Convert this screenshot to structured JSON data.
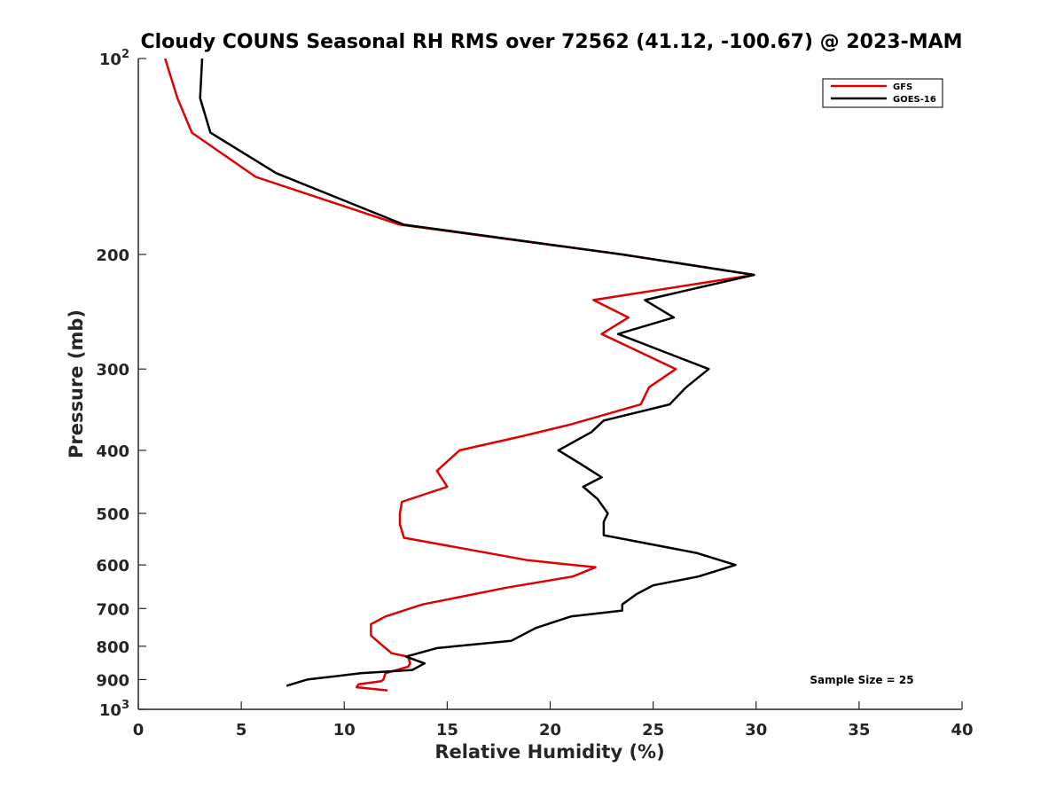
{
  "chart_data": {
    "type": "line",
    "title": "Cloudy COUNS Seasonal RH RMS over 72562 (41.12, -100.67) @ 2023-MAM",
    "xlabel": "Relative Humidity (%)",
    "ylabel": "Pressure (mb)",
    "xlim": [
      0,
      40
    ],
    "ylim": [
      100,
      1000
    ],
    "yscale": "log",
    "y_reversed": true,
    "xticks": [
      "0",
      "5",
      "10",
      "15",
      "20",
      "25",
      "30",
      "35",
      "40"
    ],
    "yticks": [
      {
        "value": 100,
        "base": "10",
        "exp": "2"
      },
      {
        "value": 200,
        "label": "200"
      },
      {
        "value": 300,
        "label": "300"
      },
      {
        "value": 400,
        "label": "400"
      },
      {
        "value": 500,
        "label": "500"
      },
      {
        "value": 600,
        "label": "600"
      },
      {
        "value": 700,
        "label": "700"
      },
      {
        "value": 800,
        "label": "800"
      },
      {
        "value": 900,
        "label": "900"
      },
      {
        "value": 1000,
        "base": "10",
        "exp": "3"
      }
    ],
    "legend_position": "top-right",
    "annotation": "Sample Size = 25",
    "series": [
      {
        "name": "GFS",
        "color": "#e00000",
        "points": [
          [
            1.3,
            100
          ],
          [
            1.9,
            115
          ],
          [
            2.6,
            130
          ],
          [
            5.7,
            152
          ],
          [
            12.7,
            180
          ],
          [
            23.5,
            200
          ],
          [
            29.9,
            215
          ],
          [
            22.1,
            235
          ],
          [
            23.8,
            250
          ],
          [
            22.5,
            265
          ],
          [
            26.1,
            300
          ],
          [
            24.8,
            320
          ],
          [
            24.4,
            340
          ],
          [
            21.0,
            365
          ],
          [
            18.7,
            380
          ],
          [
            15.6,
            400
          ],
          [
            14.5,
            430
          ],
          [
            15.0,
            455
          ],
          [
            12.8,
            480
          ],
          [
            12.7,
            500
          ],
          [
            12.7,
            520
          ],
          [
            12.9,
            545
          ],
          [
            18.9,
            590
          ],
          [
            22.2,
            605
          ],
          [
            21.1,
            625
          ],
          [
            17.9,
            650
          ],
          [
            13.8,
            690
          ],
          [
            12.0,
            720
          ],
          [
            11.3,
            740
          ],
          [
            11.3,
            770
          ],
          [
            11.7,
            790
          ],
          [
            12.3,
            820
          ],
          [
            13.1,
            830
          ],
          [
            13.2,
            850
          ],
          [
            13.1,
            860
          ],
          [
            12.0,
            880
          ],
          [
            11.9,
            900
          ],
          [
            11.8,
            905
          ],
          [
            10.7,
            915
          ],
          [
            10.6,
            925
          ],
          [
            12.1,
            935
          ]
        ]
      },
      {
        "name": "GOES-16",
        "color": "#000000",
        "points": [
          [
            3.1,
            100
          ],
          [
            3.0,
            115
          ],
          [
            3.5,
            130
          ],
          [
            6.7,
            150
          ],
          [
            12.9,
            180
          ],
          [
            23.5,
            200
          ],
          [
            29.9,
            215
          ],
          [
            24.6,
            235
          ],
          [
            26.0,
            250
          ],
          [
            23.3,
            265
          ],
          [
            27.7,
            300
          ],
          [
            26.6,
            320
          ],
          [
            25.8,
            340
          ],
          [
            22.6,
            360
          ],
          [
            22.0,
            375
          ],
          [
            20.4,
            400
          ],
          [
            21.5,
            420
          ],
          [
            22.5,
            440
          ],
          [
            21.6,
            455
          ],
          [
            22.3,
            475
          ],
          [
            22.8,
            500
          ],
          [
            22.6,
            515
          ],
          [
            22.6,
            540
          ],
          [
            27.1,
            575
          ],
          [
            29.0,
            600
          ],
          [
            27.2,
            625
          ],
          [
            25.0,
            645
          ],
          [
            24.2,
            665
          ],
          [
            23.5,
            690
          ],
          [
            23.5,
            705
          ],
          [
            21.0,
            720
          ],
          [
            19.3,
            750
          ],
          [
            18.1,
            785
          ],
          [
            14.5,
            805
          ],
          [
            13.0,
            830
          ],
          [
            13.9,
            850
          ],
          [
            13.3,
            870
          ],
          [
            10.8,
            880
          ],
          [
            8.2,
            900
          ],
          [
            7.2,
            920
          ]
        ]
      }
    ]
  }
}
